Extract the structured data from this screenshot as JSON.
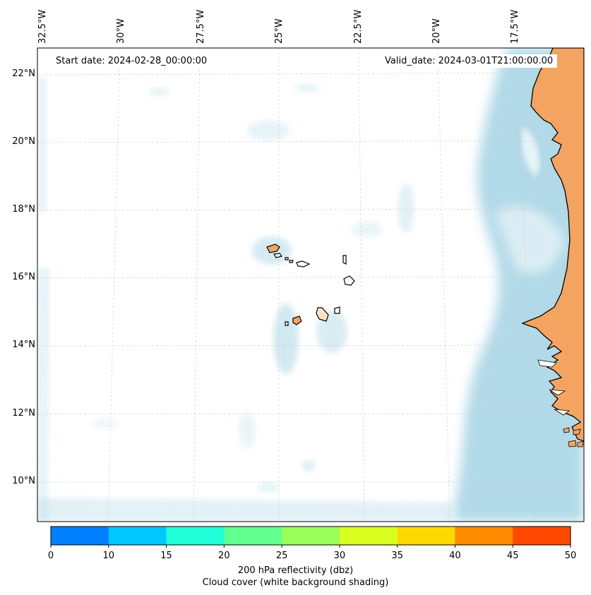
{
  "map": {
    "start_date": "Start date: 2024-02-28_00:00:00",
    "valid_date": "Valid_date: 2024-03-01T21:00:00.00",
    "lon_labels": [
      "32.5°W",
      "30°W",
      "27.5°W",
      "25°W",
      "22.5°W",
      "20°W",
      "17.5°W"
    ],
    "lat_labels": [
      "22°N",
      "20°N",
      "18°N",
      "16°N",
      "14°N",
      "12°N",
      "10°N"
    ]
  },
  "colorbar": {
    "ticks": [
      "0",
      "10",
      "15",
      "20",
      "25",
      "30",
      "35",
      "40",
      "45",
      "50"
    ],
    "colors": [
      "#0080ff",
      "#00c8ff",
      "#20ffd8",
      "#60ff90",
      "#9aff58",
      "#d8ff20",
      "#ffd800",
      "#ff8c00",
      "#ff4800"
    ],
    "label_line1": "200 hPa reflectivity (dbz)",
    "label_line2": "Cloud cover (white background shading)"
  },
  "colors": {
    "land": "#f4a460",
    "cloud": "#add8e6"
  }
}
